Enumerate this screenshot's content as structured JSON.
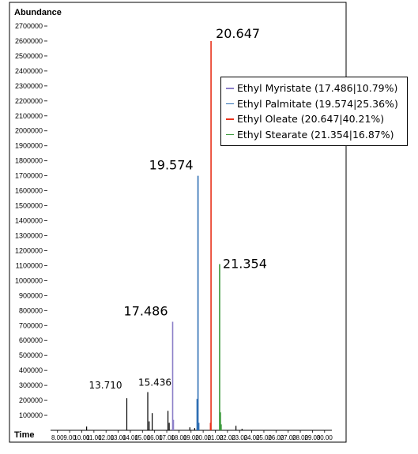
{
  "chart_data": {
    "type": "line",
    "xlabel": "Time",
    "ylabel": "Abundance",
    "xlim": [
      7.3,
      30.6
    ],
    "ylim": [
      0,
      2700000
    ],
    "xticks": [
      "8.00",
      "9.00",
      "10.00",
      "11.00",
      "12.00",
      "13.00",
      "14.00",
      "15.00",
      "16.00",
      "17.00",
      "18.00",
      "19.00",
      "20.00",
      "21.00",
      "22.00",
      "23.00",
      "24.00",
      "25.00",
      "26.00",
      "27.00",
      "28.00",
      "29.00",
      "30.00"
    ],
    "yticks": [
      "100000",
      "200000",
      "300000",
      "400000",
      "500000",
      "600000",
      "700000",
      "800000",
      "900000",
      "1000000",
      "1100000",
      "1200000",
      "1300000",
      "1400000",
      "1500000",
      "1600000",
      "1700000",
      "1800000",
      "1900000",
      "2000000",
      "2100000",
      "2200000",
      "2300000",
      "2400000",
      "2500000",
      "2600000",
      "2700000"
    ],
    "series": [
      {
        "name": "Ethyl Myristate (17.486|10.79%)",
        "color": "#8c7fc8",
        "peaks": [
          [
            17.486,
            725000
          ],
          [
            17.55,
            70000
          ]
        ]
      },
      {
        "name": "Ethyl Palmitate (19.574|25.36%)",
        "color": "#2f6fb3",
        "peaks": [
          [
            19.574,
            1700000
          ],
          [
            19.5,
            210000
          ],
          [
            19.64,
            50000
          ]
        ]
      },
      {
        "name": "Ethyl Oleate (20.647|40.21%)",
        "color": "#e8321c",
        "peaks": [
          [
            20.647,
            2600000
          ],
          [
            20.6,
            50000
          ]
        ]
      },
      {
        "name": "Ethyl Stearate (21.354|16.87%)",
        "color": "#3c9a3c",
        "peaks": [
          [
            21.354,
            1110000
          ],
          [
            21.42,
            120000
          ],
          [
            21.48,
            40000
          ]
        ]
      }
    ],
    "other_peaks": [
      [
        10.4,
        25000
      ],
      [
        13.71,
        215000
      ],
      [
        15.436,
        255000
      ],
      [
        15.55,
        60000
      ],
      [
        15.8,
        115000
      ],
      [
        17.1,
        130000
      ],
      [
        17.2,
        50000
      ],
      [
        18.9,
        20000
      ],
      [
        19.3,
        15000
      ],
      [
        22.7,
        30000
      ],
      [
        23.2,
        10000
      ]
    ],
    "annotations": [
      {
        "text": "20.647",
        "x": 20.647,
        "y": 2600000,
        "size": "big"
      },
      {
        "text": "19.574",
        "x": 19.574,
        "y": 1700000,
        "size": "big"
      },
      {
        "text": "21.354",
        "x": 21.354,
        "y": 1110000,
        "size": "big"
      },
      {
        "text": "17.486",
        "x": 17.486,
        "y": 725000,
        "size": "big"
      },
      {
        "text": "15.436",
        "x": 15.436,
        "y": 255000,
        "size": "small"
      },
      {
        "text": "13.710",
        "x": 13.71,
        "y": 215000,
        "size": "small"
      }
    ],
    "legend_position": "top-right",
    "grid": false
  }
}
